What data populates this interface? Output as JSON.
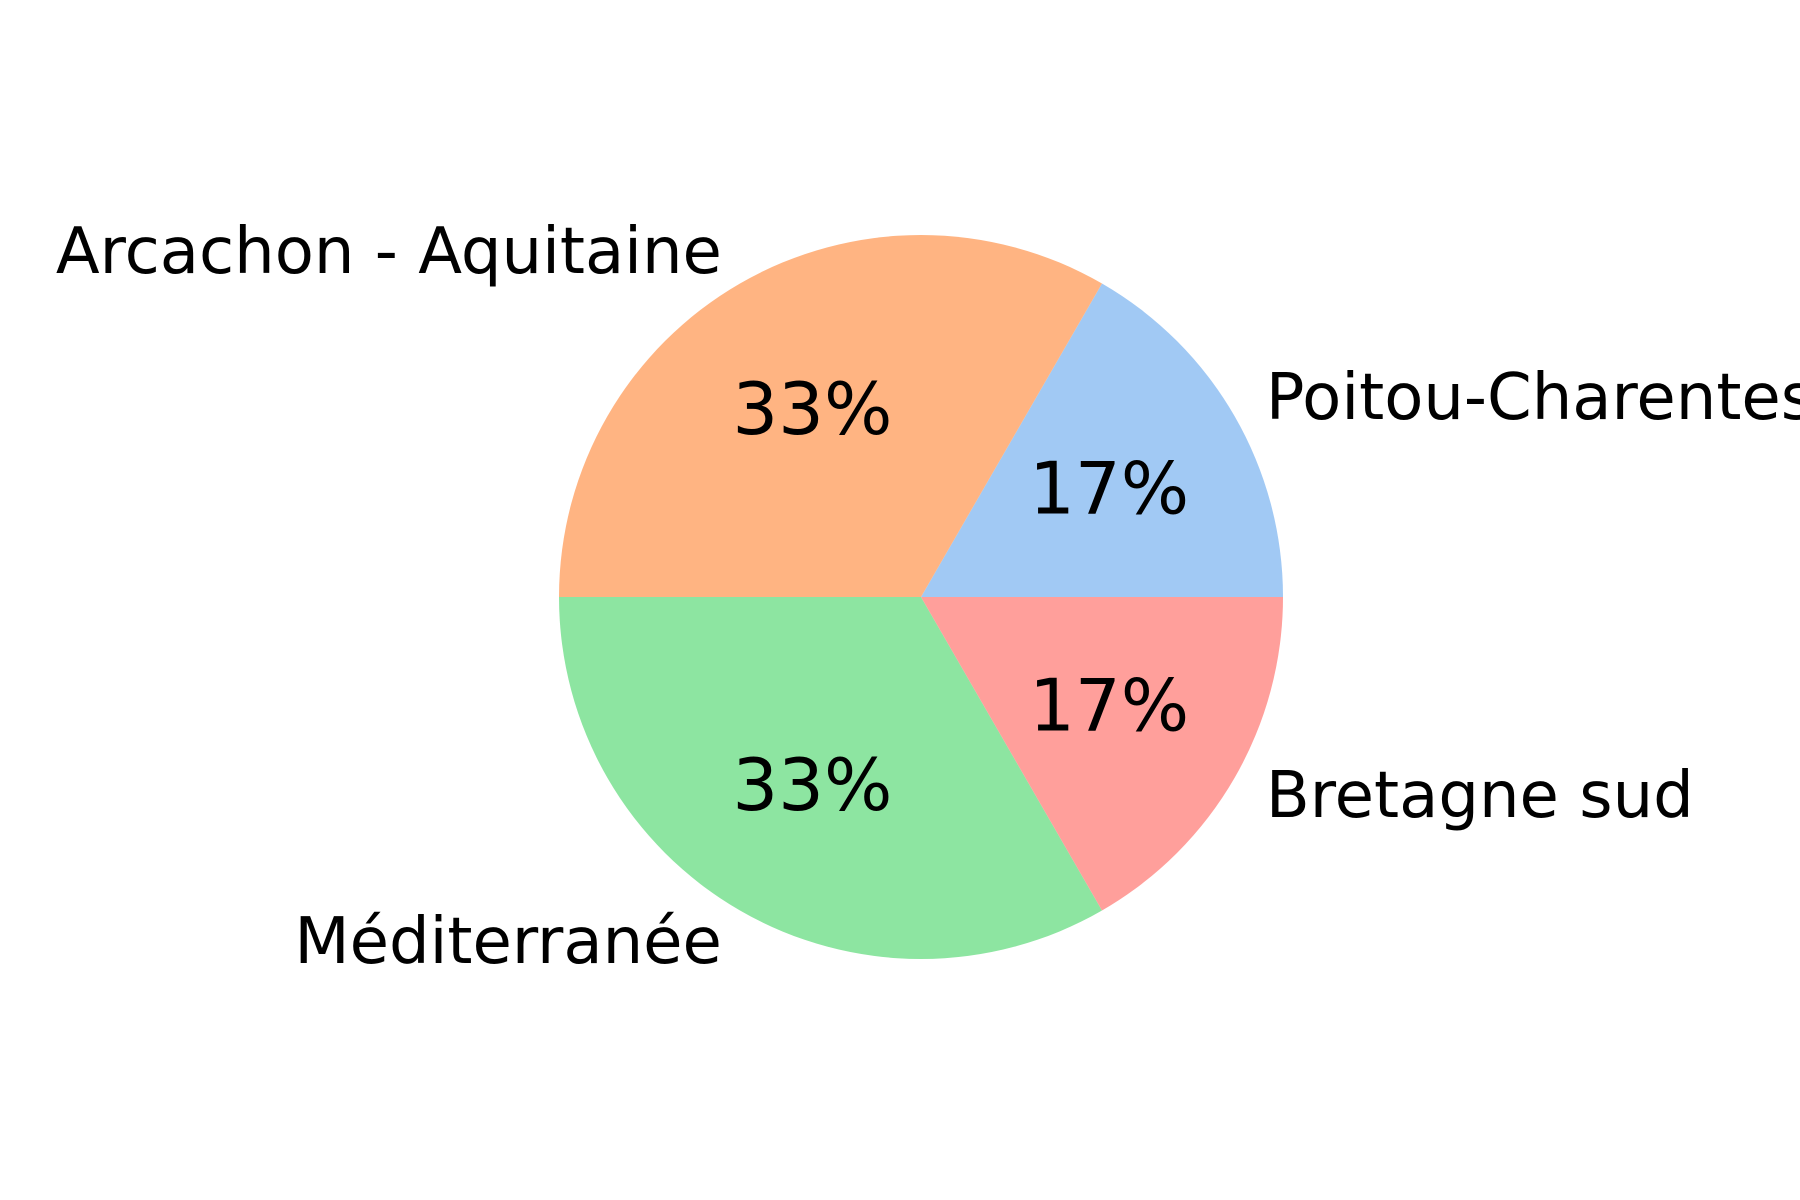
{
  "chart_data": {
    "type": "pie",
    "title": "",
    "categories": [
      "Poitou-Charentes",
      "Arcachon - Aquitaine",
      "Méditerranée",
      "Bretagne sud"
    ],
    "values": [
      1,
      2,
      2,
      1
    ],
    "percent_labels": [
      "17%",
      "33%",
      "33%",
      "17%"
    ],
    "colors": [
      "#a1c9f4",
      "#ffb482",
      "#8de5a1",
      "#ff9f9b"
    ],
    "start_angle_degrees": 0,
    "direction": "counterclockwise"
  }
}
